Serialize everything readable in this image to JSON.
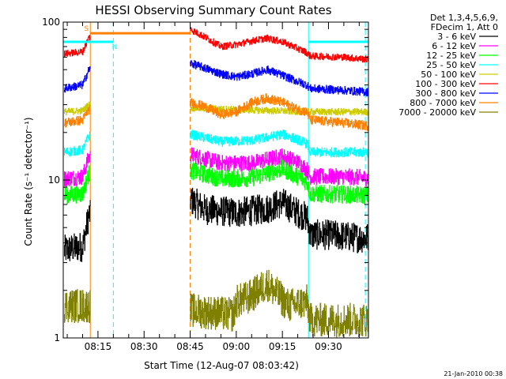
{
  "chart_data": {
    "type": "line",
    "title": "HESSI Observing Summary Count Rates",
    "xlabel": "Start Time (12-Aug-07 08:03:42)",
    "ylabel": "Count Rate (s⁻¹ detector⁻¹)",
    "y_scale": "log",
    "ylim": [
      1,
      100
    ],
    "xlim": [
      "08:03:42",
      "09:43:00"
    ],
    "y_ticks": [
      "1",
      "10",
      "100"
    ],
    "x_ticks": [
      "08:15",
      "08:30",
      "08:45",
      "09:00",
      "09:15",
      "09:30"
    ],
    "x_ticks_min": [
      15,
      30,
      45,
      60,
      75,
      90
    ],
    "xlim_min": [
      3.7,
      103.0
    ],
    "timestamp": "21-Jan-2010 00:38",
    "legend": {
      "position": "right",
      "header": [
        "Det 1,3,4,5,6,9,",
        "FDecim 1, Att 0"
      ],
      "entries": [
        {
          "label": "3 - 6 keV",
          "color": "#000000"
        },
        {
          "label": "6 - 12 keV",
          "color": "#ff00ff"
        },
        {
          "label": "12 - 25 keV",
          "color": "#00ff00"
        },
        {
          "label": "25 - 50 keV",
          "color": "#00ffff"
        },
        {
          "label": "50 - 100 keV",
          "color": "#cccc00"
        },
        {
          "label": "100 - 300 keV",
          "color": "#ff0000"
        },
        {
          "label": "300 - 800 keV",
          "color": "#0000ff"
        },
        {
          "label": "800 - 7000 keV",
          "color": "#ff8000"
        },
        {
          "label": "7000 - 20000 keV",
          "color": "#808000"
        }
      ]
    },
    "flags": [
      {
        "label": "S",
        "color": "#ff8000",
        "y": 85,
        "x_start": 12.5,
        "x_end": 45.0
      },
      {
        "label": "N",
        "color": "#00ffff",
        "y": 75,
        "x_start": 3.7,
        "x_end": 20.0
      },
      {
        "label": "",
        "color": "#00ffff",
        "y": 75,
        "x_start": 83.5,
        "x_end": 103.0
      }
    ],
    "vlines": [
      {
        "x": 3.7,
        "color": "#00ffff",
        "style": "solid"
      },
      {
        "x": 12.5,
        "color": "#ff8000",
        "style": "solid"
      },
      {
        "x": 20.0,
        "color": "#00ffff",
        "style": "dashed"
      },
      {
        "x": 45.0,
        "color": "#ff8000",
        "style": "dashed"
      },
      {
        "x": 83.5,
        "color": "#00ffff",
        "style": "solid"
      },
      {
        "x": 102.0,
        "color": "#00ffff",
        "style": "dashed"
      }
    ],
    "segments": [
      {
        "start": 3.7,
        "end": 12.5
      },
      {
        "start": 45.0,
        "end": 103.0
      }
    ],
    "series": [
      {
        "name": "3 - 6 keV",
        "color": "#000000",
        "x": [
          4,
          10,
          12,
          45,
          50,
          60,
          70,
          75,
          80,
          83,
          84,
          90,
          100,
          103
        ],
        "y": [
          3.6,
          3.8,
          6,
          7.5,
          6.5,
          6.2,
          6.6,
          7.2,
          6.2,
          5.8,
          4.5,
          4.5,
          4.3,
          4.3
        ],
        "noise": 0.22
      },
      {
        "name": "6 - 12 keV",
        "color": "#ff00ff",
        "x": [
          4,
          10,
          12,
          45,
          55,
          65,
          75,
          80,
          83,
          84,
          95,
          103
        ],
        "y": [
          10.2,
          10.5,
          14,
          14.5,
          12.8,
          12.8,
          14.2,
          13,
          11.6,
          10.5,
          10.5,
          10.3
        ],
        "noise": 0.12
      },
      {
        "name": "12 - 25 keV",
        "color": "#00ff00",
        "x": [
          4,
          10,
          12,
          45,
          55,
          65,
          75,
          80,
          83,
          84,
          95,
          103
        ],
        "y": [
          8.0,
          8.2,
          11,
          11.5,
          10.2,
          10.3,
          11.8,
          10.5,
          9.7,
          8.2,
          8.1,
          8.0
        ],
        "noise": 0.13
      },
      {
        "name": "25 - 50 keV",
        "color": "#00ffff",
        "x": [
          4,
          10,
          12,
          45,
          55,
          65,
          75,
          80,
          83,
          84,
          95,
          103
        ],
        "y": [
          15.0,
          15.5,
          19,
          19.5,
          17.5,
          17.8,
          19.5,
          18,
          17,
          15.0,
          15.0,
          15.0
        ],
        "noise": 0.07
      },
      {
        "name": "50 - 100 keV",
        "color": "#cccc00",
        "x": [
          4,
          10,
          12,
          84,
          95,
          103
        ],
        "y": [
          27,
          27.5,
          30,
          27,
          27,
          27
        ],
        "noise": 0.05
      },
      {
        "name": "100 - 300 keV",
        "color": "#ff0000",
        "x": [
          4,
          10,
          12,
          45,
          50,
          55,
          60,
          65,
          70,
          75,
          80,
          83,
          84,
          95,
          103
        ],
        "y": [
          63,
          65,
          80,
          90,
          80,
          70,
          72,
          76,
          79,
          75,
          68,
          64,
          61,
          60,
          58
        ],
        "noise": 0.05
      },
      {
        "name": "300 - 800 keV",
        "color": "#0000ff",
        "x": [
          4,
          10,
          12,
          45,
          50,
          55,
          60,
          65,
          70,
          75,
          80,
          83,
          84,
          95,
          103
        ],
        "y": [
          38,
          40,
          50,
          55,
          51,
          47,
          45,
          47,
          50,
          46,
          42,
          40,
          38,
          37,
          36
        ],
        "noise": 0.06
      },
      {
        "name": "800 - 7000 keV",
        "color": "#ff8000",
        "x": [
          4,
          10,
          12,
          45,
          50,
          55,
          60,
          65,
          70,
          75,
          80,
          83,
          84,
          95,
          103
        ],
        "y": [
          23,
          24,
          28,
          31,
          29,
          26,
          27,
          31,
          33,
          31,
          28,
          27,
          24,
          23,
          22
        ],
        "noise": 0.07
      },
      {
        "name": "7000 - 20000 keV",
        "color": "#808000",
        "x": [
          4,
          12,
          45,
          59,
          60,
          64,
          70,
          77,
          83,
          84,
          103
        ],
        "y": [
          1.6,
          1.6,
          1.5,
          1.4,
          1.7,
          1.8,
          2.2,
          1.6,
          1.7,
          1.3,
          1.3
        ],
        "noise": 0.25
      }
    ]
  }
}
